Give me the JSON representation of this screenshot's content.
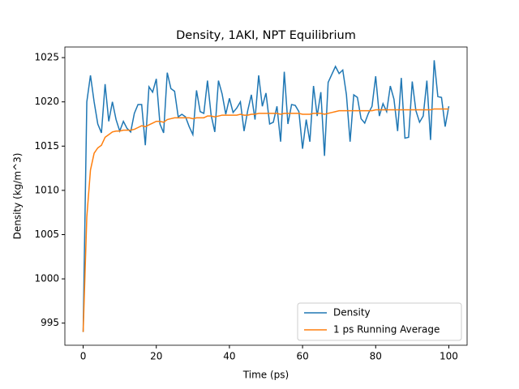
{
  "chart_data": {
    "type": "line",
    "title": "Density, 1AKI, NPT Equilibrium",
    "x_label": "Time (ps)",
    "y_label": "Density (kg/m^3)",
    "x": [
      0,
      1,
      2,
      3,
      4,
      5,
      6,
      7,
      8,
      9,
      10,
      11,
      12,
      13,
      14,
      15,
      16,
      17,
      18,
      19,
      20,
      21,
      22,
      23,
      24,
      25,
      26,
      27,
      28,
      29,
      30,
      31,
      32,
      33,
      34,
      35,
      36,
      37,
      38,
      39,
      40,
      41,
      42,
      43,
      44,
      45,
      46,
      47,
      48,
      49,
      50,
      51,
      52,
      53,
      54,
      55,
      56,
      57,
      58,
      59,
      60,
      61,
      62,
      63,
      64,
      65,
      66,
      67,
      68,
      69,
      70,
      71,
      72,
      73,
      74,
      75,
      76,
      77,
      78,
      79,
      80,
      81,
      82,
      83,
      84,
      85,
      86,
      87,
      88,
      89,
      90,
      91,
      92,
      93,
      94,
      95,
      96,
      97,
      98,
      99,
      100
    ],
    "series": [
      {
        "name": "Density",
        "color": "#1f77b4",
        "values": [
          994,
          1020,
          1023,
          1020,
          1017.5,
          1016.5,
          1022,
          1017.8,
          1020,
          1018,
          1016.7,
          1017.8,
          1017,
          1016.6,
          1018.7,
          1019.7,
          1019.7,
          1015.1,
          1021.7,
          1021.1,
          1022.6,
          1017.5,
          1016.5,
          1023.3,
          1021.5,
          1021.2,
          1018.3,
          1018.6,
          1018.3,
          1017.2,
          1016.3,
          1021.3,
          1018.9,
          1018.7,
          1022.4,
          1018.5,
          1016.6,
          1022.4,
          1020.9,
          1018.6,
          1020.4,
          1018.8,
          1019.3,
          1020,
          1016.7,
          1019,
          1020.8,
          1018,
          1023,
          1019.5,
          1021,
          1017.5,
          1017.7,
          1019.5,
          1015.5,
          1023.4,
          1017.5,
          1019.7,
          1019.6,
          1018.9,
          1014.7,
          1018,
          1015.5,
          1021.8,
          1018.4,
          1021.1,
          1013.9,
          1022.2,
          1023.1,
          1024,
          1023.2,
          1023.6,
          1020.8,
          1015.5,
          1020.8,
          1020.5,
          1018.1,
          1017.6,
          1018.7,
          1019.5,
          1022.9,
          1018.4,
          1019.8,
          1018.9,
          1021.8,
          1020.3,
          1016.7,
          1022.7,
          1015.9,
          1016,
          1022.3,
          1019,
          1017.7,
          1018.4,
          1022.4,
          1015.7,
          1024.7,
          1020.6,
          1020.5,
          1017.2,
          1019.5
        ]
      },
      {
        "name": "1 ps Running Average",
        "color": "#ff7f0e",
        "values": [
          994,
          1007,
          1012.3,
          1014.2,
          1014.8,
          1015.1,
          1016,
          1016.3,
          1016.6,
          1016.7,
          1016.7,
          1016.8,
          1016.8,
          1016.8,
          1016.9,
          1017.1,
          1017.3,
          1017.2,
          1017.4,
          1017.6,
          1017.8,
          1017.8,
          1017.7,
          1018,
          1018.1,
          1018.2,
          1018.2,
          1018.2,
          1018.2,
          1018.2,
          1018.1,
          1018.2,
          1018.2,
          1018.2,
          1018.4,
          1018.4,
          1018.3,
          1018.4,
          1018.5,
          1018.5,
          1018.5,
          1018.5,
          1018.5,
          1018.6,
          1018.5,
          1018.5,
          1018.6,
          1018.6,
          1018.7,
          1018.7,
          1018.7,
          1018.7,
          1018.7,
          1018.7,
          1018.6,
          1018.7,
          1018.7,
          1018.7,
          1018.7,
          1018.7,
          1018.6,
          1018.6,
          1018.6,
          1018.7,
          1018.7,
          1018.7,
          1018.6,
          1018.7,
          1018.8,
          1018.9,
          1019,
          1019,
          1019,
          1019,
          1019,
          1019,
          1019,
          1019,
          1019,
          1019,
          1019.1,
          1019.1,
          1019.1,
          1019.1,
          1019.1,
          1019.1,
          1019.1,
          1019.1,
          1019.1,
          1019.1,
          1019.1,
          1019.1,
          1019.1,
          1019.1,
          1019.1,
          1019.1,
          1019.2,
          1019.2,
          1019.2,
          1019.2,
          1019.2
        ]
      }
    ],
    "xlim": [
      -5,
      105
    ],
    "ylim": [
      992.5,
      1026.2
    ],
    "xticks": [
      0,
      20,
      40,
      60,
      80,
      100
    ],
    "yticks": [
      995,
      1000,
      1005,
      1010,
      1015,
      1020,
      1025
    ],
    "legend": "lower right",
    "grid": false
  }
}
